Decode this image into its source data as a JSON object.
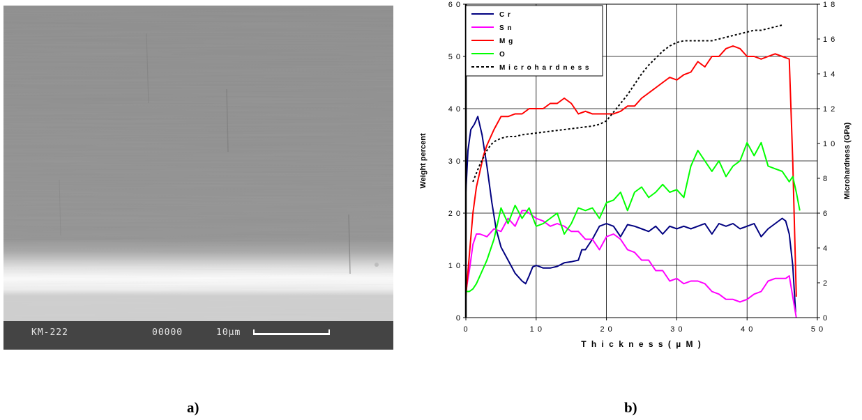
{
  "sem_image": {
    "sample_label": "KM-222",
    "image_number": "00000",
    "scale_label": "10µm"
  },
  "panel_labels": {
    "a": "a)",
    "b": "b)"
  },
  "colors": {
    "Cr": "#000080",
    "Sn": "#ff00ff",
    "Mg": "#ff0000",
    "O": "#00ff00",
    "Microhardness": "#000000"
  },
  "chart_data": {
    "type": "line",
    "xlabel": "Thickness (µM)",
    "ylabel": "Weight percent",
    "y2label": "Microhardness (GPa)",
    "xlim": [
      0,
      50
    ],
    "ylim": [
      0,
      60
    ],
    "y2lim": [
      0,
      18
    ],
    "x_ticks": [
      0,
      10,
      20,
      30,
      40,
      50
    ],
    "y_ticks": [
      0,
      10,
      20,
      30,
      40,
      50,
      60
    ],
    "y2_ticks": [
      0,
      2,
      4,
      6,
      8,
      10,
      12,
      14,
      16,
      18
    ],
    "grid": true,
    "legend_position": "top-left",
    "series": [
      {
        "name": "Cr",
        "axis": "left",
        "style": "solid",
        "x": [
          0,
          0.3,
          0.7,
          1.2,
          1.7,
          2.3,
          3,
          3.7,
          4.3,
          5,
          6,
          7,
          8,
          8.5,
          9,
          9.5,
          10,
          11,
          12,
          13,
          14,
          15,
          16,
          16.5,
          17,
          18,
          19,
          20,
          21,
          22,
          23,
          24,
          25,
          26,
          27,
          28,
          29,
          30,
          31,
          32,
          33,
          34,
          35,
          36,
          37,
          38,
          39,
          40,
          41,
          42,
          43,
          44,
          45,
          45.5,
          46,
          46.5,
          46.9
        ],
        "y": [
          24,
          32,
          36,
          37,
          38.5,
          35,
          29,
          22,
          17,
          13.5,
          11,
          8.5,
          7,
          6.5,
          8,
          9.7,
          10,
          9.5,
          9.5,
          9.8,
          10.5,
          10.7,
          11,
          13,
          13,
          15,
          17.5,
          18,
          17.5,
          15.5,
          17.8,
          17.5,
          17,
          16.5,
          17.5,
          16,
          17.5,
          17,
          17.5,
          17,
          17.5,
          18,
          16,
          18,
          17.5,
          18,
          17,
          17.5,
          18,
          15.5,
          17,
          18,
          19,
          18.5,
          16,
          10,
          1
        ]
      },
      {
        "name": "Sn",
        "axis": "left",
        "style": "solid",
        "x": [
          0,
          0.5,
          1,
          1.5,
          2,
          3,
          4,
          5,
          6,
          7,
          8,
          8.5,
          9,
          10,
          11,
          12,
          13,
          14,
          15,
          16,
          17,
          18,
          19,
          20,
          21,
          22,
          23,
          24,
          25,
          26,
          27,
          28,
          29,
          30,
          31,
          32,
          33,
          34,
          35,
          36,
          37,
          38,
          39,
          40,
          41,
          42,
          43,
          44,
          45,
          45.5,
          46,
          46.5,
          47
        ],
        "y": [
          5,
          9,
          14,
          16,
          16,
          15.5,
          17,
          16.5,
          19,
          17.5,
          20.5,
          20.5,
          20,
          19,
          18.5,
          17.5,
          18,
          17.5,
          16.5,
          16.5,
          15,
          15,
          13,
          15.5,
          16,
          15,
          13,
          12.5,
          11,
          11,
          9,
          9,
          7,
          7.5,
          6.5,
          7,
          7,
          6.5,
          5,
          4.5,
          3.5,
          3.5,
          3,
          3.5,
          4.5,
          5,
          7,
          7.5,
          7.5,
          7.5,
          8,
          4,
          0
        ]
      },
      {
        "name": "Mg",
        "axis": "left",
        "style": "solid",
        "x": [
          0,
          0.5,
          1,
          1.5,
          2,
          2.5,
          3,
          4,
          5,
          6,
          7,
          8,
          9,
          10,
          11,
          12,
          13,
          14,
          15,
          16,
          17,
          18,
          19,
          20,
          21,
          22,
          23,
          24,
          25,
          26,
          27,
          28,
          29,
          30,
          31,
          32,
          33,
          34,
          35,
          36,
          37,
          38,
          39,
          40,
          41,
          42,
          43,
          44,
          45,
          46,
          46.5,
          47
        ],
        "y": [
          4,
          12,
          20,
          25,
          28,
          31,
          33,
          36,
          38.5,
          38.5,
          39,
          39,
          40,
          40,
          40,
          41,
          41,
          42,
          41,
          39,
          39.5,
          39,
          39,
          39,
          39,
          39.5,
          40.5,
          40.5,
          42,
          43,
          44,
          45,
          46,
          45.5,
          46.5,
          47,
          49,
          48,
          50,
          50,
          51.5,
          52,
          51.5,
          50,
          50,
          49.5,
          50,
          50.5,
          50,
          49.5,
          30,
          4
        ]
      },
      {
        "name": "O",
        "axis": "left",
        "style": "solid",
        "x": [
          0,
          0.5,
          1,
          1.5,
          2,
          3,
          4,
          5,
          6,
          7,
          8,
          9,
          10,
          11,
          12,
          13,
          14,
          15,
          16,
          17,
          18,
          19,
          20,
          21,
          22,
          23,
          24,
          25,
          26,
          27,
          28,
          29,
          30,
          31,
          32,
          33,
          34,
          35,
          36,
          37,
          38,
          39,
          40,
          41,
          42,
          43,
          44,
          45,
          46,
          46.5,
          47,
          47.5
        ],
        "y": [
          5,
          5,
          5.5,
          6.5,
          8,
          11,
          15,
          21,
          18,
          21.5,
          19,
          21,
          17.5,
          18,
          19,
          20,
          16,
          18,
          21,
          20.5,
          21,
          19,
          22,
          22.5,
          24,
          20.5,
          24,
          25,
          23,
          24,
          25.5,
          24,
          24.5,
          23,
          29,
          32,
          30,
          28,
          30,
          27,
          29,
          30,
          33.5,
          31,
          33.5,
          29,
          28.5,
          28,
          26,
          27,
          24,
          20.5
        ]
      },
      {
        "name": "Microhardness",
        "axis": "right",
        "style": "dashed",
        "x": [
          1,
          1.5,
          2,
          2.5,
          3,
          3.5,
          4,
          5,
          6,
          7,
          8,
          10,
          12,
          14,
          16,
          18,
          19,
          20,
          21,
          22,
          23,
          24,
          25,
          26,
          27,
          28,
          29,
          30,
          31,
          32,
          33,
          34,
          35,
          36,
          37,
          38,
          39,
          40,
          41,
          42,
          43,
          44,
          45
        ],
        "y": [
          7.8,
          8.3,
          8.8,
          9.2,
          9.6,
          9.9,
          10.1,
          10.3,
          10.4,
          10.4,
          10.5,
          10.6,
          10.7,
          10.8,
          10.9,
          11.0,
          11.1,
          11.3,
          11.8,
          12.3,
          12.8,
          13.4,
          14.0,
          14.5,
          14.9,
          15.3,
          15.6,
          15.8,
          15.9,
          15.9,
          15.9,
          15.9,
          15.9,
          16.0,
          16.1,
          16.2,
          16.3,
          16.4,
          16.5,
          16.5,
          16.6,
          16.7,
          16.8
        ]
      }
    ]
  }
}
